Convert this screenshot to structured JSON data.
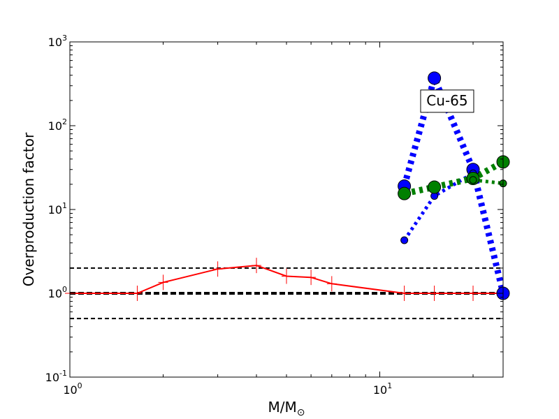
{
  "chart_data": {
    "type": "line",
    "xscale": "log",
    "yscale": "log",
    "xlim": [
      1,
      25
    ],
    "ylim": [
      0.1,
      1000
    ],
    "x_ticks": [
      {
        "value": 1,
        "base": "10",
        "exp": "0"
      },
      {
        "value": 10,
        "base": "10",
        "exp": "1"
      }
    ],
    "y_ticks": [
      {
        "value": 0.1,
        "base": "10",
        "exp": "-1"
      },
      {
        "value": 1,
        "base": "10",
        "exp": "0"
      },
      {
        "value": 10,
        "base": "10",
        "exp": "1"
      },
      {
        "value": 100,
        "base": "10",
        "exp": "2"
      },
      {
        "value": 1000,
        "base": "10",
        "exp": "3"
      }
    ],
    "xlabel": "M/M",
    "xlabel_sub": "⊙",
    "ylabel": "Overproduction factor",
    "annotation": {
      "text": "Cu-65",
      "x": 16.5,
      "y": 200
    },
    "hlines": [
      {
        "y": 1,
        "style": "dashed-thick",
        "color": "#000000"
      },
      {
        "y": 2,
        "style": "dashed",
        "color": "#000000"
      },
      {
        "y": 0.5,
        "style": "dashed",
        "color": "#000000"
      }
    ],
    "series": [
      {
        "style": "solid",
        "color": "#ff0000",
        "x": [
          1,
          1.65,
          2,
          3,
          4,
          5,
          6,
          7,
          12,
          15,
          20,
          25
        ],
        "y": [
          1,
          1,
          1.35,
          1.95,
          2.15,
          1.6,
          1.55,
          1.3,
          1,
          1,
          1,
          1
        ],
        "markers": "plus"
      },
      {
        "style": "dotted-thick",
        "color": "#0000ff",
        "marker_color": "#0000ff",
        "x": [
          12,
          15,
          20,
          25
        ],
        "y": [
          19,
          370,
          30,
          1
        ],
        "marker_size": "large"
      },
      {
        "style": "dotted-medium",
        "color": "#0000ff",
        "marker_color": "#0000ff",
        "x": [
          12,
          15,
          20
        ],
        "y": [
          4.3,
          14.5,
          27
        ],
        "marker_size": "small"
      },
      {
        "style": "dotted-thick",
        "color": "#008000",
        "marker_color": "#008000",
        "x": [
          12,
          15,
          20,
          25
        ],
        "y": [
          15.5,
          18.5,
          23.5,
          37
        ],
        "marker_size": "large"
      },
      {
        "style": "dotted-medium",
        "color": "#008000",
        "marker_color": "#008000",
        "x": [
          20,
          25
        ],
        "y": [
          22.5,
          20.5
        ],
        "marker_size": "small"
      }
    ]
  }
}
